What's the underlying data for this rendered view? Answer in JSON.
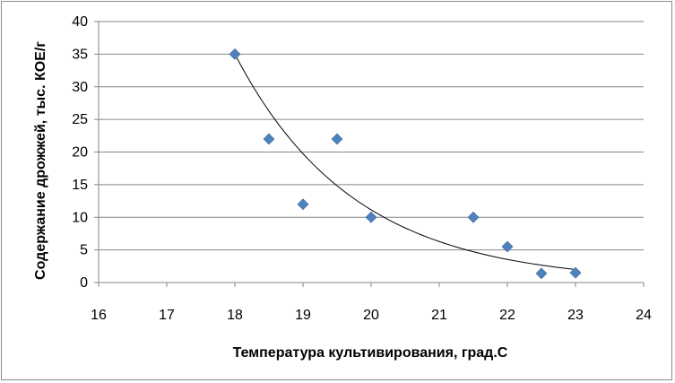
{
  "chart_data": {
    "type": "scatter",
    "title": "",
    "xlabel": "Температура культивирования, град.С",
    "ylabel": "Содержание дрожжей, тыс. КОЕ/г",
    "xlim": [
      16,
      24
    ],
    "ylim": [
      0,
      40
    ],
    "x_ticks": [
      16,
      17,
      18,
      19,
      20,
      21,
      22,
      23,
      24
    ],
    "y_ticks": [
      0,
      5,
      10,
      15,
      20,
      25,
      30,
      35,
      40
    ],
    "grid": "horizontal",
    "legend": "none",
    "series": [
      {
        "x": [
          18,
          18.5,
          19,
          19.5,
          20,
          21.5,
          22,
          22.5,
          23
        ],
        "y": [
          35,
          22,
          12,
          22,
          10,
          10,
          5.5,
          1.4,
          1.5
        ],
        "marker": "diamond",
        "color": "#4f81bd"
      }
    ],
    "trendline": {
      "type": "exponential",
      "color": "#000000",
      "x_range": [
        18,
        23
      ],
      "y_start": 35,
      "y_end": 2
    }
  }
}
